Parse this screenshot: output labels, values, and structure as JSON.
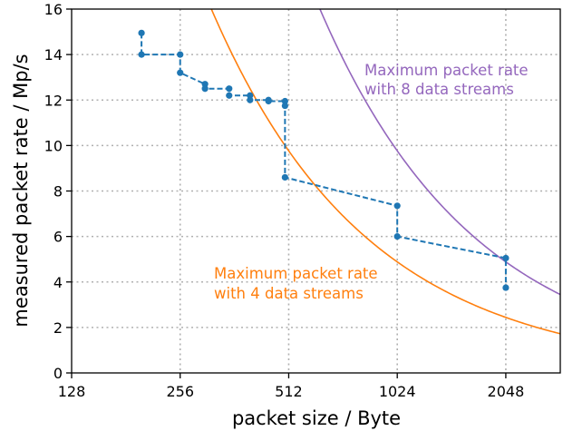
{
  "chart_data": {
    "type": "line",
    "xlabel": "packet size / Byte",
    "ylabel": "measured packet rate / Mp/s",
    "xscale": "log2",
    "xlim": [
      128,
      2900
    ],
    "ylim": [
      0,
      16
    ],
    "xticks": [
      128,
      256,
      512,
      1024,
      2048
    ],
    "yticks": [
      0,
      2,
      4,
      6,
      8,
      10,
      12,
      14,
      16
    ],
    "grid": true,
    "series": [
      {
        "name": "",
        "color": "#1f77b4",
        "style": "dashed-markers",
        "points": [
          [
            200,
            14.95
          ],
          [
            200,
            14.0
          ],
          [
            256,
            14.0
          ],
          [
            256,
            13.2
          ],
          [
            300,
            12.7
          ],
          [
            300,
            12.5
          ],
          [
            350,
            12.5
          ],
          [
            350,
            12.2
          ],
          [
            400,
            12.2
          ],
          [
            400,
            12.0
          ],
          [
            450,
            12.0
          ],
          [
            450,
            11.95
          ],
          [
            500,
            11.95
          ],
          [
            500,
            11.75
          ],
          [
            500,
            8.6
          ],
          [
            1024,
            7.35
          ],
          [
            1024,
            6.0
          ],
          [
            2048,
            5.05
          ],
          [
            2048,
            3.75
          ]
        ]
      }
    ],
    "curves": [
      {
        "label_line1": "Maximum packet rate",
        "label_line2": "with 4 data streams",
        "color": "#ff7f0e",
        "constant": 5000
      },
      {
        "label_line1": "Maximum packet rate",
        "label_line2": "with 8 data streams",
        "color": "#9467bd",
        "constant": 10000
      }
    ]
  }
}
